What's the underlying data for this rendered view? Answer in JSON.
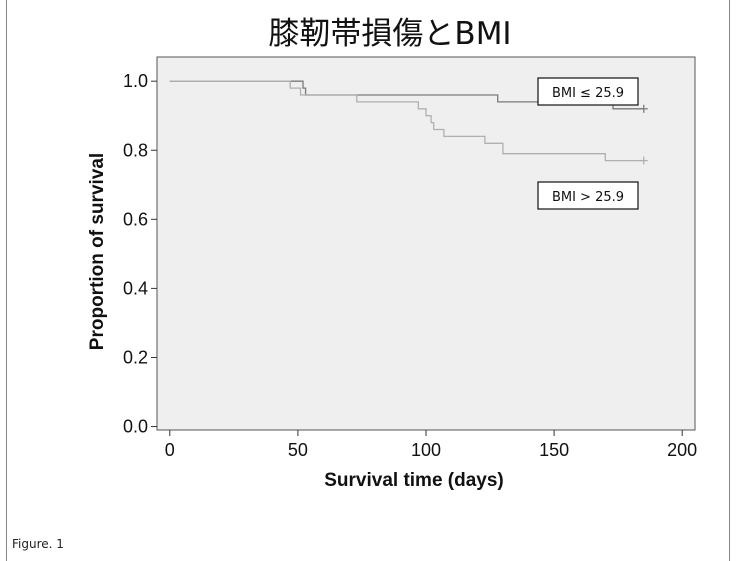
{
  "caption": "Figure. 1",
  "chart_data": {
    "type": "line",
    "subtype": "kaplan-meier step",
    "title": "膝靭帯損傷とBMI",
    "xlabel": "Survival time (days)",
    "ylabel": "Proportion of survival",
    "xlim": [
      -5,
      205
    ],
    "ylim": [
      -0.01,
      1.07
    ],
    "x_ticks": [
      0,
      50,
      100,
      150,
      200
    ],
    "y_ticks": [
      0.0,
      0.2,
      0.4,
      0.6,
      0.8,
      1.0
    ],
    "x_tick_labels": [
      "0",
      "50",
      "100",
      "150",
      "200"
    ],
    "y_tick_labels": [
      "0.0",
      "0.2",
      "0.4",
      "0.6",
      "0.8",
      "1.0"
    ],
    "grid": false,
    "series": [
      {
        "name": "BMI ≤ 25.9",
        "color": "#7a7a7a",
        "points": [
          [
            0,
            1.0
          ],
          [
            52,
            1.0
          ],
          [
            52,
            0.98
          ],
          [
            53,
            0.98
          ],
          [
            53,
            0.96
          ],
          [
            128,
            0.96
          ],
          [
            128,
            0.94
          ],
          [
            173,
            0.94
          ],
          [
            173,
            0.92
          ],
          [
            185,
            0.92
          ]
        ],
        "censor": [
          [
            185,
            0.92
          ]
        ]
      },
      {
        "name": "BMI > 25.9",
        "color": "#b0b0b0",
        "points": [
          [
            0,
            1.0
          ],
          [
            47,
            1.0
          ],
          [
            47,
            0.98
          ],
          [
            51,
            0.98
          ],
          [
            51,
            0.96
          ],
          [
            73,
            0.96
          ],
          [
            73,
            0.94
          ],
          [
            97,
            0.94
          ],
          [
            97,
            0.92
          ],
          [
            100,
            0.92
          ],
          [
            100,
            0.9
          ],
          [
            102,
            0.9
          ],
          [
            102,
            0.88
          ],
          [
            103,
            0.88
          ],
          [
            103,
            0.86
          ],
          [
            107,
            0.86
          ],
          [
            107,
            0.84
          ],
          [
            123,
            0.84
          ],
          [
            123,
            0.82
          ],
          [
            130,
            0.82
          ],
          [
            130,
            0.79
          ],
          [
            170,
            0.79
          ],
          [
            170,
            0.77
          ],
          [
            185,
            0.77
          ]
        ],
        "censor": [
          [
            185,
            0.77
          ]
        ]
      }
    ]
  }
}
